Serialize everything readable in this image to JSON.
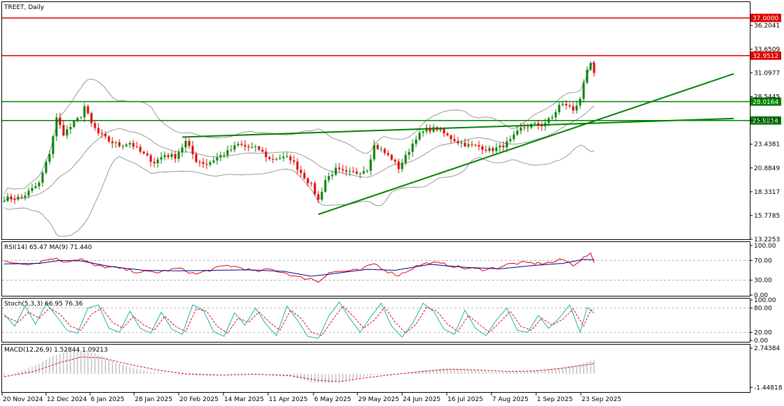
{
  "chart_data": {
    "type": "candlestick",
    "symbol_label": "TREET, Daily",
    "x_labels": [
      "20 Nov 2024",
      "12 Dec 2024",
      "6 Jan 2025",
      "28 Jan 2025",
      "20 Feb 2025",
      "14 Mar 2025",
      "11 Apr 2025",
      "6 May 2025",
      "29 May 2025",
      "24 Jun 2025",
      "16 Jul 2025",
      "7 Aug 2025",
      "1 Sep 2025",
      "23 Sep 2025"
    ],
    "price_panel": {
      "ylim": [
        13.2253,
        38.7
      ],
      "y_ticks": [
        "36.2041",
        "33.6509",
        "31.0977",
        "28.5445",
        "25.9913",
        "23.4381",
        "20.8849",
        "18.3317",
        "15.7785",
        "13.2253"
      ],
      "horizontal_levels": [
        {
          "value": 37.0,
          "label": "37.0000",
          "color": "#e00000"
        },
        {
          "value": 32.9512,
          "label": "32.9512",
          "color": "#e00000"
        },
        {
          "value": 28.0164,
          "label": "28.0164",
          "color": "#008000"
        },
        {
          "value": 25.9854,
          "label": "25.9854",
          "color": "#008000"
        }
      ],
      "trendlines": [
        {
          "from": {
            "bar": 90,
            "value": 15.9
          },
          "to": {
            "bar": 209,
            "value": 31.0
          },
          "color": "#008000"
        },
        {
          "from": {
            "bar": 51,
            "value": 24.2
          },
          "to": {
            "bar": 209,
            "value": 26.2
          },
          "color": "#008000"
        }
      ],
      "bar_count": 208,
      "price_path": [
        [
          0,
          17.6
        ],
        [
          5,
          17.7
        ],
        [
          10,
          19.2
        ],
        [
          13,
          22.5
        ],
        [
          15,
          26.2
        ],
        [
          17,
          24.6
        ],
        [
          19,
          25.3
        ],
        [
          22,
          26.5
        ],
        [
          23,
          27.5
        ],
        [
          25,
          25.6
        ],
        [
          27,
          24.6
        ],
        [
          30,
          23.8
        ],
        [
          33,
          23.3
        ],
        [
          36,
          23.6
        ],
        [
          39,
          22.6
        ],
        [
          43,
          21.5
        ],
        [
          46,
          22.3
        ],
        [
          49,
          22.1
        ],
        [
          52,
          23.7
        ],
        [
          55,
          21.7
        ],
        [
          58,
          21.3
        ],
        [
          61,
          22.0
        ],
        [
          64,
          22.6
        ],
        [
          67,
          23.4
        ],
        [
          70,
          23.1
        ],
        [
          73,
          22.9
        ],
        [
          76,
          21.8
        ],
        [
          79,
          22.0
        ],
        [
          82,
          21.9
        ],
        [
          85,
          20.4
        ],
        [
          88,
          19.0
        ],
        [
          90,
          17.4
        ],
        [
          92,
          19.6
        ],
        [
          95,
          20.7
        ],
        [
          98,
          20.3
        ],
        [
          101,
          20.4
        ],
        [
          104,
          20.8
        ],
        [
          106,
          23.3
        ],
        [
          108,
          22.8
        ],
        [
          111,
          21.9
        ],
        [
          113,
          20.9
        ],
        [
          115,
          22.1
        ],
        [
          118,
          24.2
        ],
        [
          121,
          25.0
        ],
        [
          124,
          25.1
        ],
        [
          127,
          24.3
        ],
        [
          130,
          23.7
        ],
        [
          133,
          23.3
        ],
        [
          136,
          23.2
        ],
        [
          139,
          22.8
        ],
        [
          142,
          23.1
        ],
        [
          145,
          23.8
        ],
        [
          148,
          25.1
        ],
        [
          151,
          25.5
        ],
        [
          154,
          25.5
        ],
        [
          157,
          26.3
        ],
        [
          159,
          27.6
        ],
        [
          161,
          27.7
        ],
        [
          163,
          27.1
        ],
        [
          165,
          28.4
        ],
        [
          167,
          31.2
        ],
        [
          168,
          32.1
        ],
        [
          169,
          30.9
        ]
      ],
      "bollinger": {
        "period": 20,
        "color": "#808080"
      }
    },
    "rsi_panel": {
      "label": "RSI(14) 65.47 MA(9) 71.440",
      "ylim": [
        0,
        100
      ],
      "y_ticks": [
        "100.00",
        "70.00",
        "30.00",
        "0.00"
      ],
      "levels": [
        70,
        30
      ],
      "rsi_color": "#e00000",
      "ma_color": "#00008b",
      "rsi_path": [
        [
          0,
          67
        ],
        [
          8,
          63
        ],
        [
          14,
          75
        ],
        [
          17,
          68
        ],
        [
          22,
          73
        ],
        [
          26,
          59
        ],
        [
          32,
          55
        ],
        [
          38,
          47
        ],
        [
          44,
          46
        ],
        [
          50,
          54
        ],
        [
          55,
          42
        ],
        [
          60,
          53
        ],
        [
          64,
          60
        ],
        [
          68,
          55
        ],
        [
          72,
          47
        ],
        [
          76,
          52
        ],
        [
          80,
          46
        ],
        [
          84,
          36
        ],
        [
          88,
          33
        ],
        [
          90,
          27
        ],
        [
          93,
          46
        ],
        [
          97,
          48
        ],
        [
          102,
          50
        ],
        [
          106,
          64
        ],
        [
          110,
          47
        ],
        [
          113,
          40
        ],
        [
          118,
          58
        ],
        [
          122,
          66
        ],
        [
          127,
          61
        ],
        [
          132,
          54
        ],
        [
          137,
          52
        ],
        [
          141,
          55
        ],
        [
          145,
          63
        ],
        [
          149,
          65
        ],
        [
          153,
          64
        ],
        [
          157,
          66
        ],
        [
          160,
          72
        ],
        [
          163,
          61
        ],
        [
          166,
          75
        ],
        [
          167,
          80
        ],
        [
          168,
          82
        ],
        [
          169,
          65
        ]
      ],
      "ma_path": [
        [
          0,
          63
        ],
        [
          10,
          64
        ],
        [
          16,
          70
        ],
        [
          22,
          69
        ],
        [
          30,
          58
        ],
        [
          40,
          50
        ],
        [
          50,
          49
        ],
        [
          60,
          50
        ],
        [
          70,
          51
        ],
        [
          80,
          48
        ],
        [
          88,
          38
        ],
        [
          94,
          43
        ],
        [
          104,
          52
        ],
        [
          112,
          50
        ],
        [
          122,
          62
        ],
        [
          132,
          56
        ],
        [
          142,
          53
        ],
        [
          152,
          60
        ],
        [
          160,
          64
        ],
        [
          166,
          72
        ],
        [
          169,
          71.4
        ]
      ]
    },
    "stoch_panel": {
      "label": "Stoch(5,3,3) 66.95 76.36",
      "ylim": [
        0,
        100
      ],
      "y_ticks": [
        "100.00",
        "80.00",
        "20.00",
        "0.00"
      ],
      "levels": [
        80,
        20
      ],
      "main_color": "#20b2aa",
      "signal_color": "#e00000",
      "k_path": [
        [
          0,
          65
        ],
        [
          3,
          35
        ],
        [
          6,
          85
        ],
        [
          9,
          40
        ],
        [
          12,
          92
        ],
        [
          15,
          60
        ],
        [
          18,
          25
        ],
        [
          21,
          18
        ],
        [
          24,
          80
        ],
        [
          27,
          88
        ],
        [
          30,
          30
        ],
        [
          33,
          20
        ],
        [
          36,
          72
        ],
        [
          39,
          30
        ],
        [
          42,
          18
        ],
        [
          45,
          70
        ],
        [
          48,
          28
        ],
        [
          51,
          15
        ],
        [
          54,
          88
        ],
        [
          57,
          75
        ],
        [
          60,
          22
        ],
        [
          63,
          10
        ],
        [
          66,
          68
        ],
        [
          69,
          38
        ],
        [
          72,
          80
        ],
        [
          75,
          40
        ],
        [
          78,
          12
        ],
        [
          81,
          85
        ],
        [
          84,
          50
        ],
        [
          87,
          10
        ],
        [
          90,
          5
        ],
        [
          93,
          60
        ],
        [
          96,
          95
        ],
        [
          99,
          55
        ],
        [
          102,
          20
        ],
        [
          105,
          58
        ],
        [
          108,
          92
        ],
        [
          111,
          35
        ],
        [
          114,
          8
        ],
        [
          117,
          42
        ],
        [
          120,
          92
        ],
        [
          123,
          72
        ],
        [
          126,
          28
        ],
        [
          129,
          15
        ],
        [
          132,
          75
        ],
        [
          135,
          30
        ],
        [
          138,
          12
        ],
        [
          141,
          50
        ],
        [
          144,
          80
        ],
        [
          147,
          25
        ],
        [
          150,
          20
        ],
        [
          153,
          62
        ],
        [
          156,
          30
        ],
        [
          159,
          55
        ],
        [
          162,
          88
        ],
        [
          165,
          20
        ],
        [
          167,
          82
        ],
        [
          169,
          67
        ]
      ],
      "d_path": [
        [
          0,
          60
        ],
        [
          4,
          45
        ],
        [
          7,
          70
        ],
        [
          10,
          55
        ],
        [
          13,
          80
        ],
        [
          16,
          65
        ],
        [
          19,
          35
        ],
        [
          22,
          25
        ],
        [
          25,
          65
        ],
        [
          28,
          80
        ],
        [
          31,
          45
        ],
        [
          34,
          30
        ],
        [
          37,
          60
        ],
        [
          40,
          38
        ],
        [
          43,
          25
        ],
        [
          46,
          60
        ],
        [
          49,
          35
        ],
        [
          52,
          22
        ],
        [
          55,
          78
        ],
        [
          58,
          72
        ],
        [
          61,
          35
        ],
        [
          64,
          18
        ],
        [
          67,
          55
        ],
        [
          70,
          45
        ],
        [
          73,
          70
        ],
        [
          76,
          45
        ],
        [
          79,
          25
        ],
        [
          82,
          75
        ],
        [
          85,
          55
        ],
        [
          88,
          20
        ],
        [
          91,
          12
        ],
        [
          94,
          50
        ],
        [
          97,
          85
        ],
        [
          100,
          60
        ],
        [
          103,
          30
        ],
        [
          106,
          50
        ],
        [
          109,
          82
        ],
        [
          112,
          45
        ],
        [
          115,
          18
        ],
        [
          118,
          40
        ],
        [
          121,
          82
        ],
        [
          124,
          72
        ],
        [
          127,
          40
        ],
        [
          130,
          22
        ],
        [
          133,
          62
        ],
        [
          136,
          40
        ],
        [
          139,
          20
        ],
        [
          142,
          45
        ],
        [
          145,
          72
        ],
        [
          148,
          35
        ],
        [
          151,
          25
        ],
        [
          154,
          55
        ],
        [
          157,
          38
        ],
        [
          160,
          52
        ],
        [
          163,
          78
        ],
        [
          166,
          35
        ],
        [
          168,
          75
        ],
        [
          169,
          76
        ]
      ]
    },
    "macd_panel": {
      "label": "MACD(12,26,9) 1.52844 1.09213",
      "ylim": [
        -1.8,
        2.9
      ],
      "y_ticks": [
        "2.74384",
        "-1.44818"
      ],
      "hist_color": "#c0c0c0",
      "signal_color": "#e00000",
      "macd_path": [
        [
          0,
          -0.2
        ],
        [
          5,
          0.3
        ],
        [
          10,
          1.1
        ],
        [
          14,
          1.9
        ],
        [
          18,
          2.4
        ],
        [
          22,
          2.5
        ],
        [
          26,
          2.2
        ],
        [
          30,
          1.5
        ],
        [
          36,
          0.7
        ],
        [
          42,
          0.2
        ],
        [
          50,
          -0.1
        ],
        [
          58,
          -0.2
        ],
        [
          66,
          0.1
        ],
        [
          74,
          0.05
        ],
        [
          82,
          -0.3
        ],
        [
          88,
          -0.9
        ],
        [
          92,
          -1.0
        ],
        [
          98,
          -0.7
        ],
        [
          106,
          -0.1
        ],
        [
          114,
          0.0
        ],
        [
          120,
          0.4
        ],
        [
          126,
          0.6
        ],
        [
          134,
          0.4
        ],
        [
          142,
          0.15
        ],
        [
          150,
          0.3
        ],
        [
          158,
          0.6
        ],
        [
          164,
          0.9
        ],
        [
          169,
          1.53
        ]
      ],
      "signal_path": [
        [
          0,
          -0.3
        ],
        [
          8,
          0.2
        ],
        [
          16,
          1.2
        ],
        [
          22,
          1.8
        ],
        [
          28,
          1.7
        ],
        [
          36,
          1.0
        ],
        [
          44,
          0.4
        ],
        [
          52,
          0.0
        ],
        [
          62,
          -0.15
        ],
        [
          72,
          -0.05
        ],
        [
          82,
          -0.2
        ],
        [
          90,
          -0.7
        ],
        [
          96,
          -0.85
        ],
        [
          104,
          -0.4
        ],
        [
          112,
          -0.05
        ],
        [
          120,
          0.25
        ],
        [
          128,
          0.5
        ],
        [
          136,
          0.4
        ],
        [
          144,
          0.25
        ],
        [
          152,
          0.3
        ],
        [
          160,
          0.6
        ],
        [
          169,
          1.09
        ]
      ]
    }
  }
}
